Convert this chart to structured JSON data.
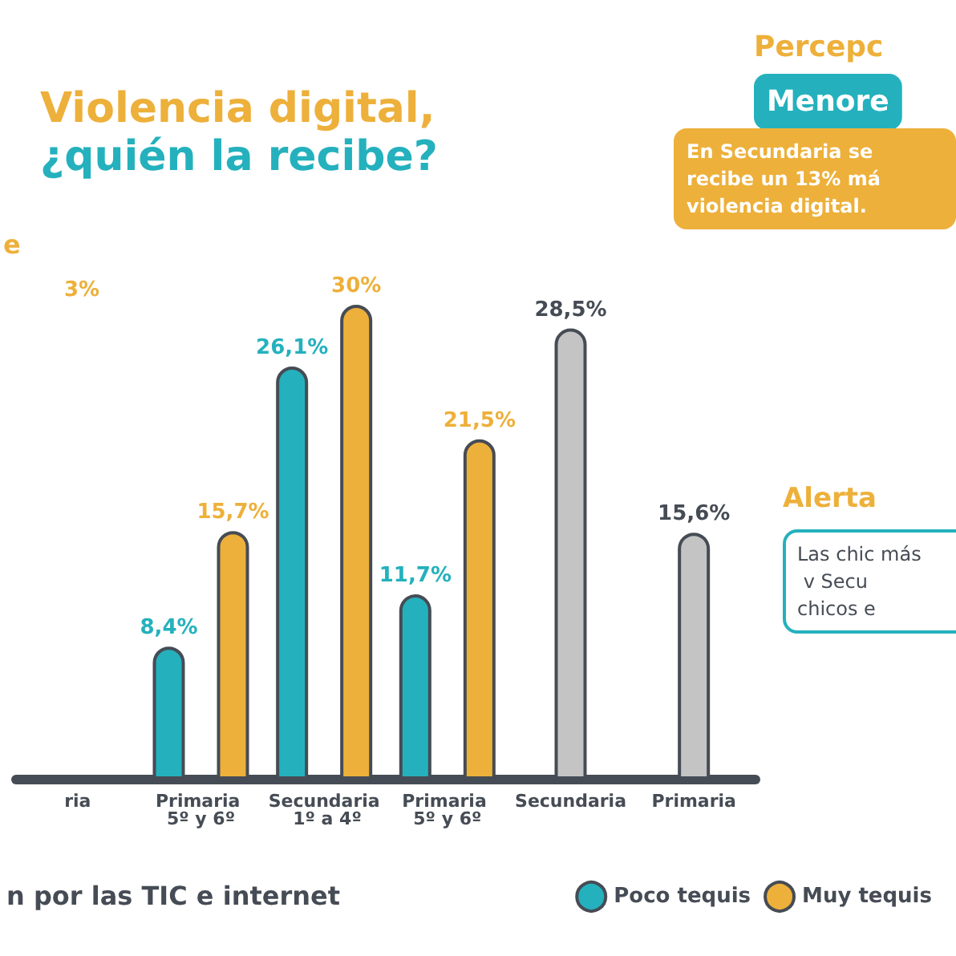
{
  "chart_data": {
    "type": "bar",
    "title": "Violencia digital,",
    "subtitle": "¿quién la recibe?",
    "categories": [
      "ria",
      "Primaria 5º y 6º",
      "Secundaria 1º a 4º",
      "Primaria 5º y 6º",
      "Secundaria",
      "Primaria"
    ],
    "series": [
      {
        "name": "Poco tequis",
        "color": "#24b1bd",
        "values": [
          null,
          8.4,
          26.1,
          11.7,
          null,
          null
        ],
        "value_labels": [
          null,
          "8,4%",
          "26,1%",
          "11,7%",
          null,
          null
        ]
      },
      {
        "name": "Muy tequis",
        "color": "#edb03a",
        "values": [
          null,
          15.7,
          30,
          21.5,
          null,
          null
        ],
        "value_labels": [
          null,
          "15,7%",
          "30%",
          "21,5%",
          null,
          null
        ]
      },
      {
        "color": "#c4c4c4",
        "values": [
          null,
          null,
          null,
          null,
          28.5,
          15.6
        ],
        "value_labels": [
          null,
          null,
          null,
          null,
          "28,5%",
          "15,6%"
        ]
      }
    ],
    "annotations": [
      "3%",
      "Percepc",
      "Menore",
      "En Secundaria se recibe un 13% má violencia digital.",
      "e",
      "Alerta",
      "Las chic más v Secu chicos e",
      "n por las TIC e internet"
    ],
    "legend": "bottom right"
  }
}
